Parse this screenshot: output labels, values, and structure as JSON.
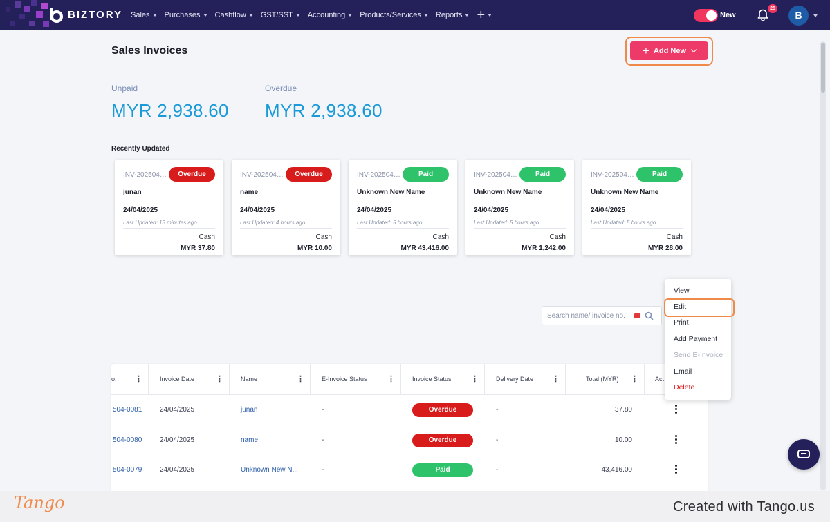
{
  "navbar": {
    "brand": "BIZTORY",
    "menu": [
      {
        "label": "Sales"
      },
      {
        "label": "Purchases"
      },
      {
        "label": "Cashflow"
      },
      {
        "label": "GST/SST"
      },
      {
        "label": "Accounting"
      },
      {
        "label": "Products/Services"
      },
      {
        "label": "Reports"
      }
    ],
    "plus": "+",
    "toggle_label": "New",
    "notification_count": "25",
    "avatar_initial": "B",
    "colors": {
      "bar": "#23205a",
      "accent": "#f0365f"
    }
  },
  "page": {
    "title": "Sales Invoices",
    "add_new_label": "Add New",
    "summary": {
      "unpaid_label": "Unpaid",
      "unpaid_amount": "MYR 2,938.60",
      "overdue_label": "Overdue",
      "overdue_amount": "MYR 2,938.60"
    },
    "recent_title": "Recently Updated",
    "cards": [
      {
        "invoice": "INV-2025040...",
        "status": "Overdue",
        "status_type": "overdue",
        "name": "junan",
        "date": "24/04/2025",
        "updated": "Last Updated: 13 minutes ago",
        "method": "Cash",
        "total": "MYR 37.80"
      },
      {
        "invoice": "INV-2025040...",
        "status": "Overdue",
        "status_type": "overdue",
        "name": "name",
        "date": "24/04/2025",
        "updated": "Last Updated: 4 hours ago",
        "method": "Cash",
        "total": "MYR 10.00"
      },
      {
        "invoice": "INV-2025040...",
        "status": "Paid",
        "status_type": "paid",
        "name": "Unknown New Name",
        "date": "24/04/2025",
        "updated": "Last Updated: 5 hours ago",
        "method": "Cash",
        "total": "MYR 43,416.00"
      },
      {
        "invoice": "INV-2025040...",
        "status": "Paid",
        "status_type": "paid",
        "name": "Unknown New Name",
        "date": "24/04/2025",
        "updated": "Last Updated: 5 hours ago",
        "method": "Cash",
        "total": "MYR 1,242.00"
      },
      {
        "invoice": "INV-2025040...",
        "status": "Paid",
        "status_type": "paid",
        "name": "Unknown New Name",
        "date": "24/04/2025",
        "updated": "Last Updated: 5 hours ago",
        "method": "Cash",
        "total": "MYR 28.00"
      }
    ],
    "search_placeholder": "Search name/ invoice no."
  },
  "table": {
    "columns": [
      "o.",
      "Invoice Date",
      "Name",
      "E-Invoice Status",
      "Invoice Status",
      "Delivery Date",
      "Total (MYR)",
      "Act"
    ],
    "rows": [
      {
        "no": "504-0081",
        "date": "24/04/2025",
        "name": "junan",
        "einvoice": "-",
        "status": "Overdue",
        "status_type": "overdue",
        "delivery": "-",
        "total": "37.80"
      },
      {
        "no": "504-0080",
        "date": "24/04/2025",
        "name": "name",
        "einvoice": "-",
        "status": "Overdue",
        "status_type": "overdue",
        "delivery": "-",
        "total": "10.00"
      },
      {
        "no": "504-0079",
        "date": "24/04/2025",
        "name": "Unknown New N...",
        "einvoice": "-",
        "status": "Paid",
        "status_type": "paid",
        "delivery": "-",
        "total": "43,416.00"
      }
    ]
  },
  "action_menu": {
    "items": [
      {
        "label": "View",
        "type": "normal"
      },
      {
        "label": "Edit",
        "type": "normal"
      },
      {
        "label": "Print",
        "type": "normal"
      },
      {
        "label": "Add Payment",
        "type": "normal"
      },
      {
        "label": "Send E-Invoice",
        "type": "disabled"
      },
      {
        "label": "Email",
        "type": "normal"
      },
      {
        "label": "Delete",
        "type": "danger"
      }
    ]
  },
  "footer": {
    "logo": "Tango",
    "created": "Created with Tango.us"
  }
}
